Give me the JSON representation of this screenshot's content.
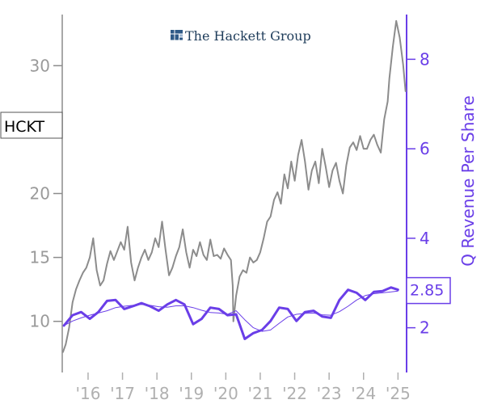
{
  "chart_data": {
    "type": "line",
    "brand": "The Hackett Group",
    "ticker": "HCKT",
    "ylabel_right": "Q Revenue Per Share",
    "last_value_label": "2.85",
    "xlim": [
      2015.25,
      2025.25
    ],
    "ylim_left": [
      6.0,
      34.0
    ],
    "ylim_right": [
      1.0,
      9.0
    ],
    "x_ticks": [
      {
        "value": 2016,
        "label": "'16"
      },
      {
        "value": 2017,
        "label": "'17"
      },
      {
        "value": 2018,
        "label": "'18"
      },
      {
        "value": 2019,
        "label": "'19"
      },
      {
        "value": 2020,
        "label": "'20"
      },
      {
        "value": 2021,
        "label": "'21"
      },
      {
        "value": 2022,
        "label": "'22"
      },
      {
        "value": 2023,
        "label": "'23"
      },
      {
        "value": 2024,
        "label": "'24"
      },
      {
        "value": 2025,
        "label": "'25"
      }
    ],
    "y_ticks_left": [
      10,
      15,
      20,
      30
    ],
    "y_ticks_right": [
      2,
      4,
      6,
      8
    ],
    "colors": {
      "price": "#8c8c8c",
      "revenue": "#6a3ee8",
      "axis_left": "#8c8c8c",
      "axis_right": "#6a3ee8",
      "brand": "#1e3c5a"
    },
    "series": [
      {
        "axis": "left",
        "style": "price",
        "x": [
          2015.27,
          2015.35,
          2015.45,
          2015.55,
          2015.65,
          2015.75,
          2015.85,
          2015.95,
          2016.05,
          2016.15,
          2016.25,
          2016.35,
          2016.45,
          2016.55,
          2016.65,
          2016.75,
          2016.85,
          2016.95,
          2017.05,
          2017.15,
          2017.25,
          2017.35,
          2017.45,
          2017.55,
          2017.65,
          2017.75,
          2017.85,
          2017.95,
          2018.05,
          2018.15,
          2018.25,
          2018.35,
          2018.45,
          2018.55,
          2018.65,
          2018.75,
          2018.85,
          2018.95,
          2019.05,
          2019.15,
          2019.25,
          2019.35,
          2019.45,
          2019.55,
          2019.65,
          2019.75,
          2019.85,
          2019.95,
          2020.05,
          2020.15,
          2020.2,
          2020.22,
          2020.3,
          2020.4,
          2020.5,
          2020.6,
          2020.7,
          2020.8,
          2020.9,
          2021.0,
          2021.1,
          2021.2,
          2021.3,
          2021.4,
          2021.5,
          2021.6,
          2021.7,
          2021.8,
          2021.9,
          2022.0,
          2022.1,
          2022.2,
          2022.3,
          2022.4,
          2022.5,
          2022.6,
          2022.7,
          2022.8,
          2022.9,
          2023.0,
          2023.1,
          2023.2,
          2023.3,
          2023.4,
          2023.5,
          2023.6,
          2023.7,
          2023.8,
          2023.9,
          2024.0,
          2024.1,
          2024.2,
          2024.3,
          2024.4,
          2024.5,
          2024.6,
          2024.7,
          2024.75,
          2024.85,
          2024.95,
          2025.05,
          2025.15,
          2025.22
        ],
        "values": [
          7.6,
          8.2,
          9.5,
          11.5,
          12.5,
          13.2,
          13.8,
          14.2,
          15.0,
          16.5,
          14.0,
          12.8,
          13.2,
          14.5,
          15.5,
          14.8,
          15.5,
          16.2,
          15.6,
          17.4,
          14.6,
          13.2,
          14.2,
          15.0,
          15.6,
          14.8,
          15.4,
          16.5,
          15.8,
          17.8,
          15.6,
          13.6,
          14.2,
          15.1,
          15.8,
          17.2,
          15.4,
          14.2,
          15.6,
          15.1,
          16.2,
          15.2,
          14.8,
          16.4,
          15.1,
          15.2,
          14.9,
          15.7,
          15.2,
          14.8,
          12.8,
          10.0,
          12.0,
          13.5,
          14.0,
          13.8,
          15.0,
          14.6,
          14.8,
          15.4,
          16.5,
          17.8,
          18.2,
          19.5,
          20.1,
          19.2,
          21.5,
          20.4,
          22.5,
          21.0,
          23.0,
          24.2,
          22.5,
          20.3,
          21.8,
          22.5,
          20.8,
          23.5,
          22.1,
          20.5,
          21.8,
          22.4,
          21.0,
          20.0,
          22.2,
          23.6,
          24.0,
          23.4,
          24.5,
          23.5,
          23.5,
          24.2,
          24.6,
          23.8,
          23.2,
          25.8,
          27.2,
          29.0,
          31.5,
          33.5,
          32.2,
          30.1,
          28.0
        ]
      },
      {
        "axis": "right",
        "style": "thick",
        "x": [
          2015.3,
          2015.55,
          2015.8,
          2016.05,
          2016.3,
          2016.55,
          2016.8,
          2017.05,
          2017.3,
          2017.55,
          2017.8,
          2018.05,
          2018.3,
          2018.55,
          2018.8,
          2019.05,
          2019.3,
          2019.55,
          2019.8,
          2020.05,
          2020.3,
          2020.55,
          2020.8,
          2021.05,
          2021.3,
          2021.55,
          2021.8,
          2022.05,
          2022.3,
          2022.55,
          2022.8,
          2023.05,
          2023.3,
          2023.55,
          2023.8,
          2024.05,
          2024.3,
          2024.55,
          2024.8,
          2025.0
        ],
        "values": [
          2.05,
          2.28,
          2.35,
          2.2,
          2.35,
          2.6,
          2.62,
          2.42,
          2.48,
          2.55,
          2.48,
          2.38,
          2.52,
          2.62,
          2.52,
          2.08,
          2.2,
          2.45,
          2.42,
          2.28,
          2.3,
          1.75,
          1.88,
          1.95,
          2.15,
          2.45,
          2.42,
          2.15,
          2.35,
          2.38,
          2.25,
          2.22,
          2.62,
          2.85,
          2.78,
          2.62,
          2.8,
          2.82,
          2.9,
          2.85
        ]
      },
      {
        "axis": "right",
        "style": "thin",
        "x": [
          2015.3,
          2015.55,
          2015.8,
          2016.05,
          2016.3,
          2016.55,
          2016.8,
          2017.05,
          2017.3,
          2017.55,
          2017.8,
          2018.05,
          2018.3,
          2018.55,
          2018.8,
          2019.05,
          2019.3,
          2019.55,
          2019.8,
          2020.05,
          2020.3,
          2020.55,
          2020.8,
          2021.05,
          2021.3,
          2021.55,
          2021.8,
          2022.05,
          2022.3,
          2022.55,
          2022.8,
          2023.05,
          2023.3,
          2023.55,
          2023.8,
          2024.05,
          2024.3,
          2024.55,
          2024.8,
          2025.0
        ],
        "values": [
          2.05,
          2.15,
          2.22,
          2.28,
          2.33,
          2.38,
          2.45,
          2.48,
          2.5,
          2.52,
          2.5,
          2.47,
          2.46,
          2.49,
          2.49,
          2.45,
          2.39,
          2.34,
          2.33,
          2.3,
          2.38,
          2.18,
          2.0,
          1.92,
          1.95,
          2.1,
          2.24,
          2.3,
          2.32,
          2.33,
          2.29,
          2.28,
          2.36,
          2.48,
          2.62,
          2.72,
          2.76,
          2.78,
          2.8,
          2.82
        ]
      }
    ]
  }
}
